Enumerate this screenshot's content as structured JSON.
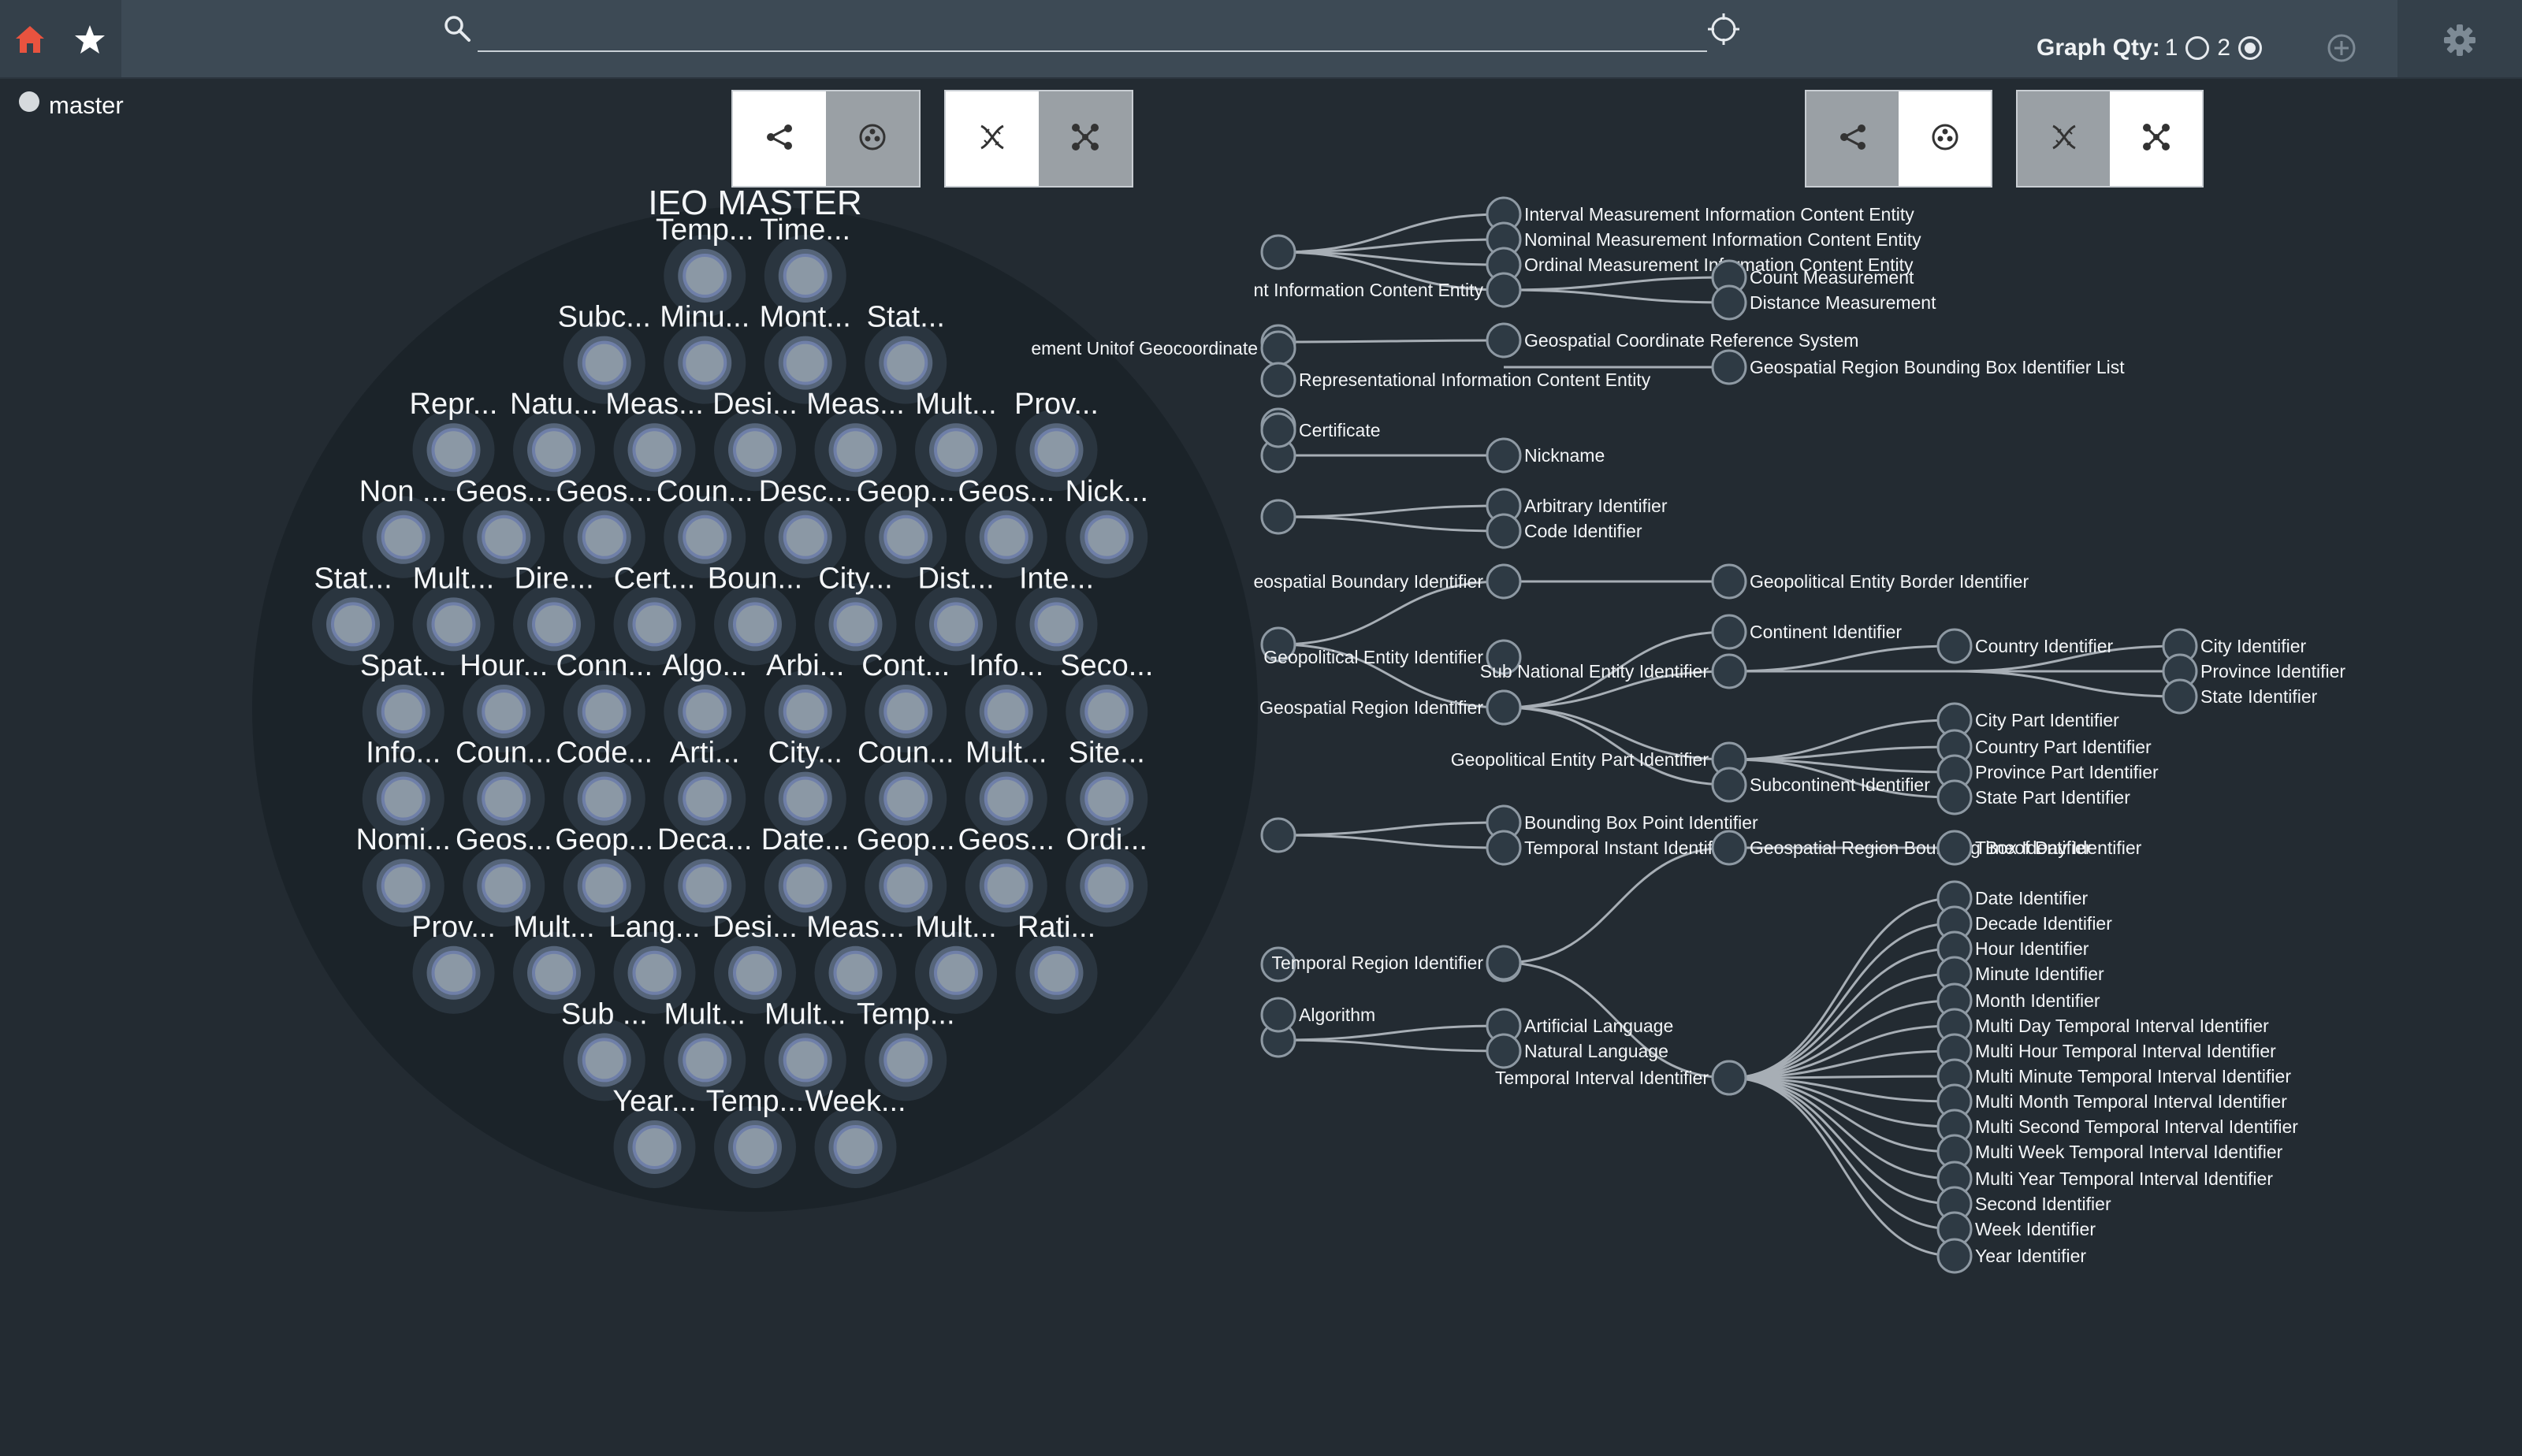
{
  "toolbar": {
    "icons": [
      "home-icon",
      "star-icon",
      "search-icon",
      "locate-icon",
      "add-circle-icon",
      "gear-icon"
    ],
    "search_value": "",
    "search_placeholder": "",
    "graph_qty_label": "Graph Qty:",
    "graph_qty_options": [
      "1",
      "2"
    ],
    "graph_qty_selected": "2"
  },
  "branch": {
    "name": "master"
  },
  "colors": {
    "accent": "#e8533f",
    "background": "#232b32",
    "topbar": "#3d4a55",
    "circle_background": "#1b2329",
    "node_fill": "#8b98a5",
    "node_ring": "#6f7fa8",
    "link": "#a7aeb5"
  },
  "left_panel": {
    "title": "IEO MASTER",
    "view_buttons": [
      {
        "icon": "tree-layout-icon",
        "state": "light"
      },
      {
        "icon": "circle-pack-icon",
        "state": "dark"
      },
      {
        "icon": "dna-icon",
        "state": "light"
      },
      {
        "icon": "network-icon",
        "state": "dark"
      }
    ],
    "rows": [
      [
        "Temp...",
        "Time..."
      ],
      [
        "Subc...",
        "Minu...",
        "Mont...",
        "Stat..."
      ],
      [
        "Repr...",
        "Natu...",
        "Meas...",
        "Desi...",
        "Meas...",
        "Mult...",
        "Prov..."
      ],
      [
        "Non ...",
        "Geos...",
        "Geos...",
        "Coun...",
        "Desc...",
        "Geop...",
        "Geos...",
        "Nick..."
      ],
      [
        "Stat...",
        "Mult...",
        "Dire...",
        "Cert...",
        "Boun...",
        "City...",
        "Dist...",
        "Inte..."
      ],
      [
        "Spat...",
        "Hour...",
        "Conn...",
        "Algo...",
        "Arbi...",
        "Cont...",
        "Info...",
        "Seco..."
      ],
      [
        "Info...",
        "Coun...",
        "Code...",
        "Arti...",
        "City...",
        "Coun...",
        "Mult...",
        "Site..."
      ],
      [
        "Nomi...",
        "Geos...",
        "Geop...",
        "Deca...",
        "Date...",
        "Geop...",
        "Geos...",
        "Ordi..."
      ],
      [
        "Prov...",
        "Mult...",
        "Lang...",
        "Desi...",
        "Meas...",
        "Mult...",
        "Rati..."
      ],
      [
        "Sub ...",
        "Mult...",
        "Mult...",
        "Temp..."
      ],
      [
        "Year...",
        "Temp...",
        "Week..."
      ]
    ]
  },
  "right_panel": {
    "view_buttons": [
      {
        "icon": "tree-layout-icon",
        "state": "dark"
      },
      {
        "icon": "circle-pack-icon",
        "state": "light"
      },
      {
        "icon": "dna-icon",
        "state": "dark"
      },
      {
        "icon": "network-icon",
        "state": "light"
      }
    ],
    "tree_labels": [
      "Interval Measurement Information Content Entity",
      "Nominal Measurement Information Content Entity",
      "Ordinal Measurement Information Content Entity",
      "nt Information Content Entity",
      "Count Measurement",
      "Distance Measurement",
      "Geospatial Coordinate Reference System",
      "ement Unitof Geocoordinate",
      "Representational Information Content Entity",
      "Geospatial Region Bounding Box Identifier List",
      "Certificate",
      "Nickname",
      "Arbitrary Identifier",
      "Code Identifier",
      "eospatial Boundary Identifier",
      "Geopolitical Entity Border Identifier",
      "Continent Identifier",
      "Geopolitical Entity Identifier",
      "Sub National Entity Identifier",
      "Country Identifier",
      "City Identifier",
      "Province Identifier",
      "State Identifier",
      "Geospatial Region Identifier",
      "City Part Identifier",
      "Country Part Identifier",
      "Geopolitical Entity Part Identifier",
      "Province Part Identifier",
      "Subcontinent Identifier",
      "State Part Identifier",
      "Bounding Box Point Identifier",
      "Temporal Instant Identifier",
      "Geospatial Region Bounding Box Identifier",
      "Timeof Day Identifier",
      "Temporal Region Identifier",
      "Algorithm",
      "Artificial Language",
      "Natural Language",
      "Temporal Interval Identifier",
      "Date Identifier",
      "Decade Identifier",
      "Hour Identifier",
      "Minute Identifier",
      "Month Identifier",
      "Multi Day Temporal Interval Identifier",
      "Multi Hour Temporal Interval Identifier",
      "Multi Minute Temporal Interval Identifier",
      "Multi Month Temporal Interval Identifier",
      "Multi Second Temporal Interval Identifier",
      "Multi Week Temporal Interval Identifier",
      "Multi Year Temporal Interval Identifier",
      "Second Identifier",
      "Week Identifier",
      "Year Identifier"
    ]
  }
}
